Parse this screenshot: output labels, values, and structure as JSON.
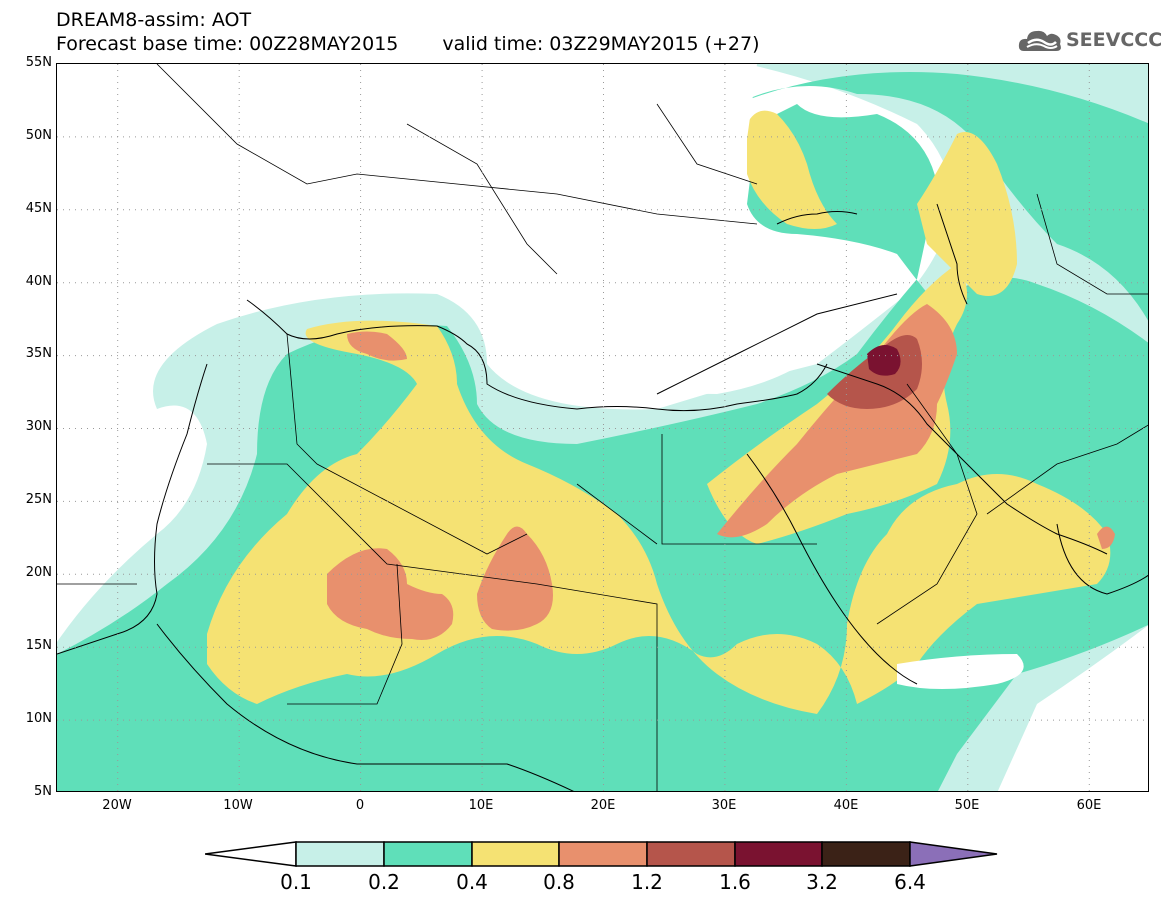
{
  "title": {
    "line1": "DREAM8-assim: AOT",
    "base": "Forecast base time: 00Z28MAY2015",
    "valid": "valid time: 03Z29MAY2015 (+27)"
  },
  "logo": {
    "text": "SEEVCCC",
    "icon": "cloud-icon"
  },
  "axes": {
    "lat_labels": [
      "55N",
      "50N",
      "45N",
      "40N",
      "35N",
      "30N",
      "25N",
      "20N",
      "15N",
      "10N",
      "5N"
    ],
    "lon_labels": [
      "20W",
      "10W",
      "0",
      "10E",
      "20E",
      "30E",
      "40E",
      "50E",
      "60E"
    ]
  },
  "colorbar": {
    "labels": [
      "0.1",
      "0.2",
      "0.4",
      "0.8",
      "1.2",
      "1.6",
      "3.2",
      "6.4"
    ],
    "colors": [
      "#ffffff",
      "#c7f0e8",
      "#5fdfb9",
      "#f5e273",
      "#e8906d",
      "#b5554b",
      "#7a1230",
      "#3b2217",
      "#8b6fb8"
    ]
  },
  "map": {
    "variable": "Aerosol Optical Thickness",
    "lon_range": [
      -25,
      65
    ],
    "lat_range": [
      5,
      55
    ],
    "grid": "dotted"
  }
}
